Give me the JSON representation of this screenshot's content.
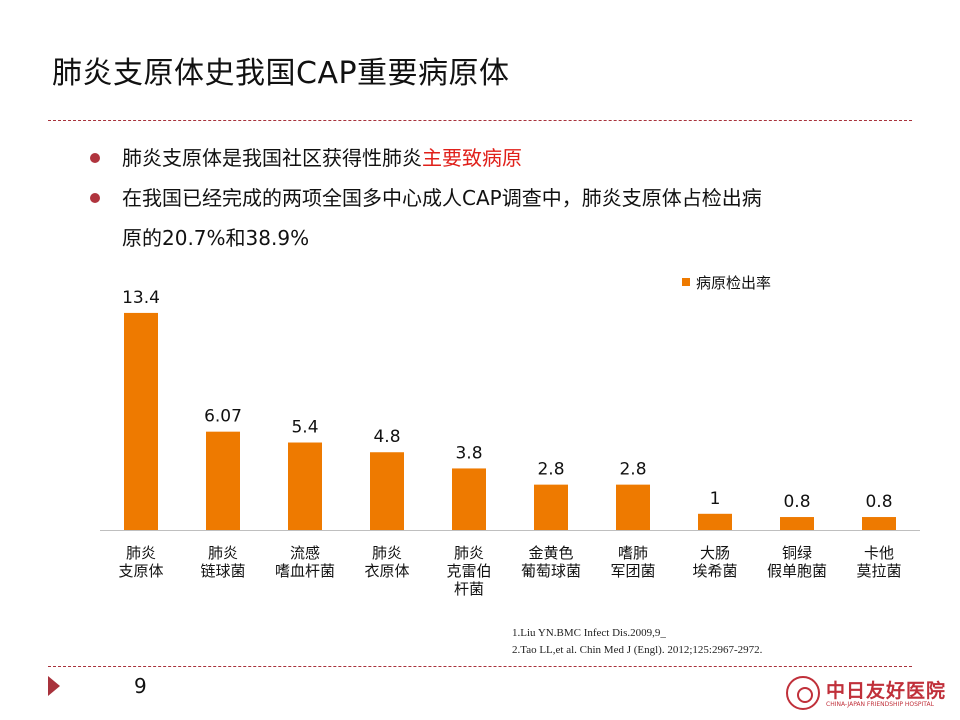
{
  "slide": {
    "title": "肺炎支原体史我国CAP重要病原体",
    "bullets": [
      {
        "pre": "肺炎支原体是我国社区获得性肺炎",
        "highlight": "主要致病原",
        "post": ""
      },
      {
        "pre": "在我国已经完成的两项全国多中心成人CAP调查中，肺炎支原体占检出病",
        "line2": "原的20.7%和38.9%"
      }
    ],
    "references": [
      "1.Liu YN.BMC Infect Dis.2009,9_",
      "2.Tao LL,et al. Chin Med J (Engl). 2012;125:2967-2972."
    ],
    "page_number": "9",
    "logo": {
      "name_cn": "中日友好医院",
      "name_en": "CHINA-JAPAN FRIENDSHIP HOSPITAL"
    }
  },
  "chart_data": {
    "type": "bar",
    "categories": [
      [
        "肺炎",
        "支原体"
      ],
      [
        "肺炎",
        "链球菌"
      ],
      [
        "流感",
        "嗜血杆菌"
      ],
      [
        "肺炎",
        "衣原体"
      ],
      [
        "肺炎",
        "克雷伯",
        "杆菌"
      ],
      [
        "金黄色",
        "葡萄球菌"
      ],
      [
        "嗜肺",
        "军团菌"
      ],
      [
        "大肠",
        "埃希菌"
      ],
      [
        "铜绿",
        "假单胞菌"
      ],
      [
        "卡他",
        "莫拉菌"
      ]
    ],
    "series": [
      {
        "name": "病原检出率",
        "values": [
          13.4,
          6.07,
          5.4,
          4.8,
          3.8,
          2.8,
          2.8,
          1,
          0.8,
          0.8
        ],
        "labels": [
          "13.4",
          "6.07",
          "5.4",
          "4.8",
          "3.8",
          "2.8",
          "2.8",
          "1",
          "0.8",
          "0.8"
        ],
        "color": "#ee7a00"
      }
    ],
    "ylim": [
      0,
      15
    ],
    "grid": false,
    "legend": "top-right"
  }
}
